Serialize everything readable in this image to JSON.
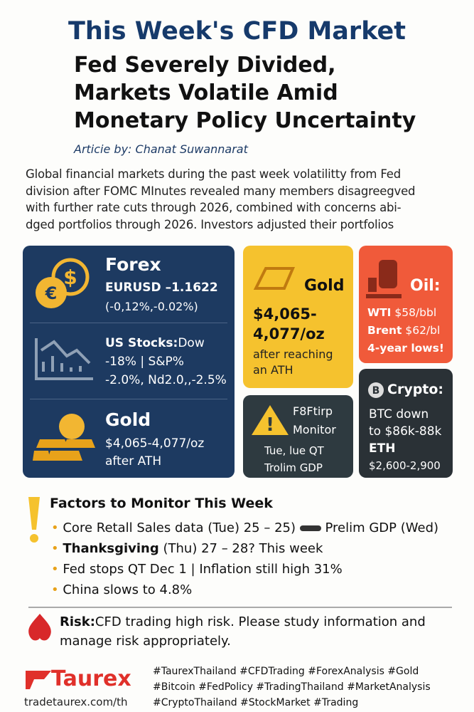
{
  "header": {
    "title": "This Week's CFD Market",
    "headline": [
      "Fed Severely Divided,",
      "Markets Volatile Amid",
      "Monetary Policy Uncertainty"
    ],
    "byline": "Articie by: Chanat Suwannarat"
  },
  "intro": [
    "Global financial markets during the past week volatilitty from Fed",
    "division after FOMC MInutes revealed many members disagreegved",
    "with further rate cuts through 2026, combined with concerns abi-",
    "dged portfolios through 2026. Investors adjusted their portfolios"
  ],
  "panel": {
    "forex": {
      "title": "Forex",
      "lines": [
        "EURUSD –1.1622",
        "(-0,12%,-0.02%)"
      ]
    },
    "stocks": {
      "title": "US Stocks:",
      "lines": [
        "Dow",
        "-18% | S&P%",
        "-2.0%, Nd2.0,,-2.5%"
      ]
    },
    "gold": {
      "title": "Gold",
      "lines": [
        "$4,065-4,077/oz",
        "after ATH"
      ]
    }
  },
  "cards": {
    "gold": {
      "title": "Gold",
      "price": [
        "$4,065-",
        "4,077/oz"
      ],
      "lines": [
        "after reaching",
        "an ATH"
      ]
    },
    "oil": {
      "title": "Oil:",
      "lines": [
        [
          "WTI",
          " $58/bbl"
        ],
        [
          "Brent",
          " $62/bl"
        ],
        [
          "4-year lows!"
        ]
      ]
    },
    "monitor": {
      "title": [
        "F8Ftirp",
        "Monitor"
      ],
      "lines": [
        "Tue, lue QT",
        "Trolim GDP"
      ]
    },
    "crypto": {
      "title": "Crypto:",
      "lines": [
        "BTC down",
        "to $86k-88k",
        "ETH",
        "$2,600-2,900"
      ]
    }
  },
  "factors": {
    "title": "Factors to Monitor This Week",
    "items": [
      [
        "Core Retall Sales data (Tue) 25 – 25)",
        "Prelim GDP (Wed)"
      ],
      [
        "Thanksgiving",
        " (Thu) 27 – 28? This week"
      ],
      [
        "Fed stops QT Dec 1  |  Inflation still high 31%"
      ],
      [
        "China slows to 4.8%"
      ]
    ]
  },
  "risk": {
    "label": "Risk:",
    "text": [
      "CFD trading high risk. Please study  information and",
      "manage risk appropriately."
    ]
  },
  "footer": {
    "brand": "Taurex",
    "url": "tradetaurex.com/th",
    "hashtags": [
      "#TaurexThailand #CFDTrading #ForexAnalysis #Gold",
      "#Bitcoin #FedPolicy #TradingThailand #MarketAnalysis",
      "#CryptoThailand #StockMarket #Trading"
    ]
  }
}
